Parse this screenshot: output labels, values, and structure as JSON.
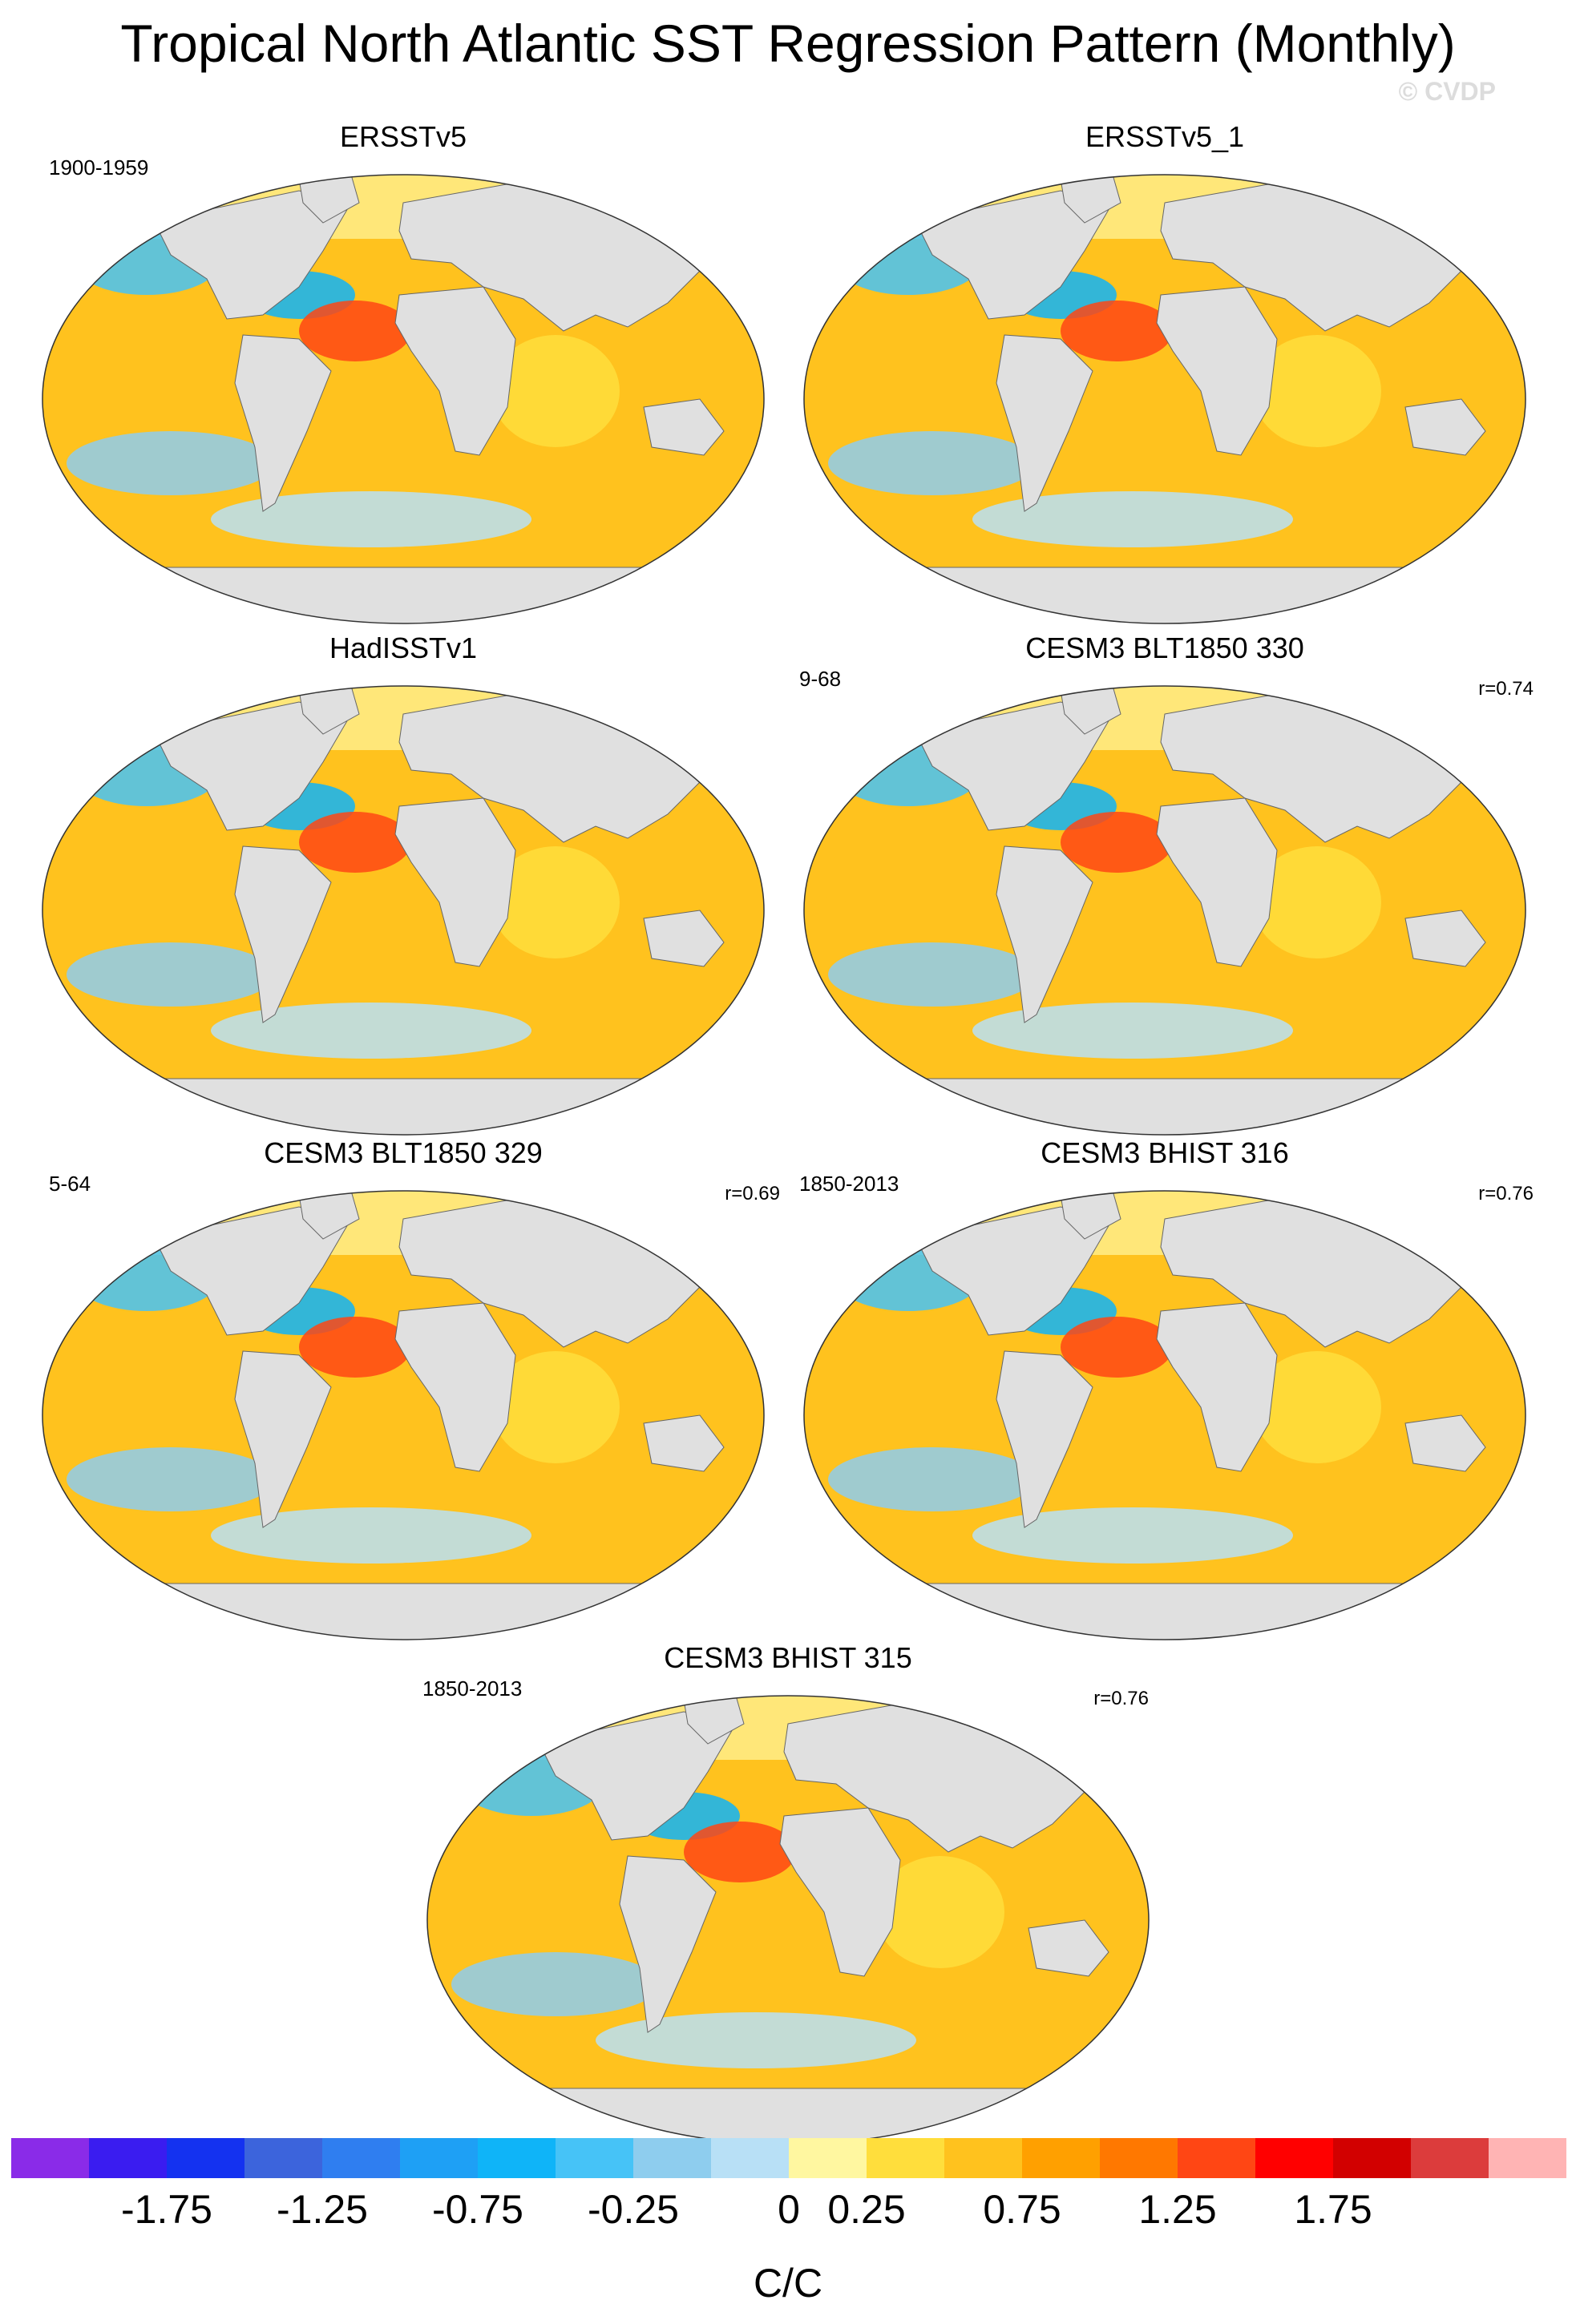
{
  "figure": {
    "title": "Tropical North Atlantic SST Regression Pattern (Monthly)",
    "copyright": "© CVDP"
  },
  "panels": [
    {
      "name": "ersstv5",
      "title": "ERSSTv5",
      "left_note": "1900-1959",
      "right_note": ""
    },
    {
      "name": "ersstv5-1",
      "title": "ERSSTv5_1",
      "left_note": "",
      "right_note": ""
    },
    {
      "name": "hadisstv1",
      "title": "HadISSTv1",
      "left_note": "",
      "right_note": ""
    },
    {
      "name": "cesm3-blt1850-330",
      "title": "CESM3 BLT1850 330",
      "left_note": "9-68",
      "right_note": "r=0.74"
    },
    {
      "name": "cesm3-blt1850-329",
      "title": "CESM3 BLT1850 329",
      "left_note": "5-64",
      "right_note": "r=0.69"
    },
    {
      "name": "cesm3-bhist-316",
      "title": "CESM3 BHIST 316",
      "left_note": "1850-2013",
      "right_note": "r=0.76"
    },
    {
      "name": "cesm3-bhist-315",
      "title": "CESM3 BHIST 315",
      "left_note": "1850-2013",
      "right_note": "r=0.76"
    }
  ],
  "colorbar": {
    "units": "C/C",
    "labels": [
      "-1.75",
      "-1.25",
      "-0.75",
      "-0.25",
      "0",
      "0.25",
      "0.75",
      "1.25",
      "1.75"
    ],
    "colors": [
      "#8a2be8",
      "#3a1cf0",
      "#1432f0",
      "#3c64dc",
      "#2f7ef0",
      "#1ea0f5",
      "#0fb4f8",
      "#46c3f7",
      "#8ecdee",
      "#b8e0f6",
      "#fff7a0",
      "#ffde3c",
      "#ffc21e",
      "#ffa000",
      "#ff7800",
      "#ff4614",
      "#ff0000",
      "#d20000",
      "#dc3c3c",
      "#ffb4b4"
    ]
  },
  "map_colors": {
    "ocean_warm": "#ffc21e",
    "ocean_base": "#fff7a0",
    "land": "#e0e0e0",
    "coast": "#666666"
  }
}
